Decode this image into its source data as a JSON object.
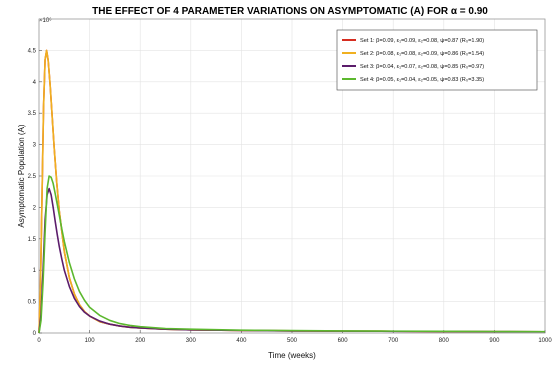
{
  "chart_data": {
    "type": "line",
    "title": "THE EFFECT OF 4 PARAMETER VARIATIONS ON ASYMPTOMATIC (A) FOR α = 0.90",
    "xlabel": "Time (weeks)",
    "ylabel": "Asymptomatic Population (A)",
    "y_exponent_label": "×10⁶",
    "xlim": [
      0,
      1000
    ],
    "ylim": [
      0,
      5
    ],
    "x_ticks": [
      0,
      100,
      200,
      300,
      400,
      500,
      600,
      700,
      800,
      900,
      1000
    ],
    "x_tick_labels": [
      "0",
      "100",
      "200",
      "300",
      "400",
      "500",
      "600",
      "700",
      "800",
      "900",
      "1000"
    ],
    "y_ticks": [
      0,
      0.5,
      1,
      1.5,
      2,
      2.5,
      3,
      3.5,
      4,
      4.5
    ],
    "y_tick_labels": [
      "0",
      "0.5",
      "1",
      "1.5",
      "2",
      "2.5",
      "3",
      "3.5",
      "4",
      "4.5"
    ],
    "grid": true,
    "legend_position": "top-right",
    "series": [
      {
        "name": "Set 1: β=0.09, ε₁=0.09, ε₂=0.08, ψ=0.87 (R₀=1.90)",
        "color": "#d62d20",
        "x": [
          0,
          3,
          6,
          9,
          12,
          15,
          18,
          22,
          26,
          30,
          35,
          40,
          50,
          60,
          70,
          80,
          90,
          100,
          120,
          140,
          160,
          180,
          200,
          250,
          300,
          400,
          500,
          600,
          700,
          800,
          900,
          1000
        ],
        "y": [
          0,
          0.8,
          2.2,
          3.6,
          4.35,
          4.5,
          4.35,
          3.95,
          3.45,
          2.95,
          2.4,
          1.95,
          1.3,
          0.88,
          0.62,
          0.45,
          0.34,
          0.27,
          0.18,
          0.14,
          0.11,
          0.09,
          0.08,
          0.06,
          0.05,
          0.04,
          0.035,
          0.03,
          0.028,
          0.025,
          0.022,
          0.02
        ]
      },
      {
        "name": "Set 2: β=0.08, ε₁=0.08, ε₂=0.09, ψ=0.86 (R₀=1.54)",
        "color": "#f0b020",
        "x": [
          0,
          3,
          6,
          9,
          12,
          15,
          18,
          22,
          26,
          30,
          35,
          40,
          50,
          60,
          70,
          80,
          90,
          100,
          120,
          140,
          160,
          180,
          200,
          250,
          300,
          400,
          500,
          600,
          700,
          800,
          900,
          1000
        ],
        "y": [
          0,
          0.8,
          2.2,
          3.6,
          4.35,
          4.5,
          4.35,
          3.95,
          3.45,
          2.95,
          2.4,
          1.95,
          1.3,
          0.88,
          0.62,
          0.45,
          0.34,
          0.27,
          0.18,
          0.14,
          0.11,
          0.09,
          0.08,
          0.06,
          0.05,
          0.04,
          0.035,
          0.03,
          0.028,
          0.025,
          0.022,
          0.02
        ]
      },
      {
        "name": "Set 3: β=0.04, ε₁=0.07, ε₂=0.08, ψ=0.85 (R₀=0.97)",
        "color": "#5b1c6b",
        "x": [
          0,
          4,
          8,
          12,
          16,
          20,
          24,
          28,
          32,
          36,
          40,
          45,
          50,
          60,
          70,
          80,
          90,
          100,
          120,
          140,
          160,
          180,
          200,
          250,
          300,
          400,
          500,
          600,
          700,
          800,
          900,
          1000
        ],
        "y": [
          0,
          0.3,
          1.0,
          1.8,
          2.2,
          2.3,
          2.2,
          2.0,
          1.78,
          1.57,
          1.38,
          1.18,
          1.0,
          0.74,
          0.55,
          0.42,
          0.33,
          0.27,
          0.19,
          0.14,
          0.11,
          0.09,
          0.08,
          0.06,
          0.05,
          0.04,
          0.033,
          0.03,
          0.027,
          0.024,
          0.022,
          0.02
        ]
      },
      {
        "name": "Set 4: β=0.05, ε₁=0.04, ε₂=0.05, ψ=0.83 (R₀=3.35)",
        "color": "#5cb82e",
        "x": [
          0,
          4,
          8,
          12,
          16,
          20,
          24,
          28,
          32,
          36,
          40,
          45,
          50,
          60,
          70,
          80,
          90,
          100,
          120,
          140,
          160,
          180,
          200,
          250,
          300,
          400,
          500,
          600,
          700,
          800,
          900,
          1000
        ],
        "y": [
          0,
          0.2,
          0.8,
          1.6,
          2.3,
          2.5,
          2.48,
          2.38,
          2.22,
          2.05,
          1.88,
          1.66,
          1.46,
          1.12,
          0.86,
          0.66,
          0.52,
          0.41,
          0.28,
          0.2,
          0.15,
          0.12,
          0.1,
          0.07,
          0.06,
          0.045,
          0.038,
          0.033,
          0.03,
          0.027,
          0.024,
          0.022
        ]
      }
    ]
  }
}
